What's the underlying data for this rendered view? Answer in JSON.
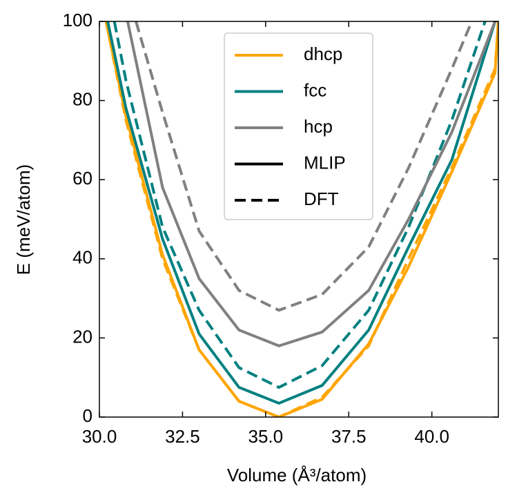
{
  "chart_data": {
    "type": "line",
    "xlabel": "Volume (Å³/atom)",
    "ylabel": "E (meV/atom)",
    "xlim": [
      30,
      42
    ],
    "ylim": [
      0,
      100
    ],
    "xticks": [
      {
        "value": 30,
        "label": "30.0"
      },
      {
        "value": 32.5,
        "label": "32.5"
      },
      {
        "value": 35,
        "label": "35.0"
      },
      {
        "value": 37.5,
        "label": "37.5"
      },
      {
        "value": 40,
        "label": "40.0"
      }
    ],
    "yticks": [
      0,
      20,
      40,
      60,
      80,
      100
    ],
    "legend_position": "upper center",
    "legend": [
      {
        "label": "dhcp",
        "color": "#ffa500",
        "dash": "solid"
      },
      {
        "label": "fcc",
        "color": "#008080",
        "dash": "solid"
      },
      {
        "label": "hcp",
        "color": "#808080",
        "dash": "solid"
      },
      {
        "label": "MLIP",
        "color": "#000000",
        "dash": "solid"
      },
      {
        "label": "DFT",
        "color": "#000000",
        "dash": "dashed"
      }
    ],
    "series": [
      {
        "name": "dhcp",
        "method": "MLIP",
        "color": "#ffa500",
        "dash": "solid",
        "x": [
          30.2,
          30.8,
          31.9,
          33.0,
          34.2,
          35.4,
          36.7,
          38.1,
          39.3,
          40.6,
          41.9,
          42.0
        ],
        "values": [
          100,
          76,
          41,
          17,
          4,
          0,
          4.5,
          18.5,
          38,
          62,
          87,
          100
        ]
      },
      {
        "name": "dhcp",
        "method": "DFT",
        "color": "#ffa500",
        "dash": "dashed",
        "x": [
          30.2,
          30.8,
          31.9,
          33.0,
          34.2,
          35.4,
          36.7,
          38.1,
          39.3,
          40.6,
          41.9,
          42.0
        ],
        "values": [
          100,
          75,
          40,
          17,
          4,
          0,
          5,
          18,
          40,
          63,
          88,
          100
        ]
      },
      {
        "name": "fcc",
        "method": "MLIP",
        "color": "#008080",
        "dash": "solid",
        "x": [
          30.25,
          30.8,
          31.9,
          33.0,
          34.2,
          35.4,
          36.7,
          38.1,
          39.3,
          40.6,
          41.9
        ],
        "values": [
          100,
          78,
          45,
          21,
          7.5,
          3.5,
          8,
          22,
          43,
          65,
          100
        ]
      },
      {
        "name": "fcc",
        "method": "DFT",
        "color": "#008080",
        "dash": "dashed",
        "x": [
          30.45,
          30.8,
          31.9,
          33.0,
          34.2,
          35.4,
          36.7,
          38.1,
          39.3,
          40.6,
          41.6
        ],
        "values": [
          100,
          85,
          48,
          27,
          12.5,
          7.5,
          13,
          27,
          48,
          75,
          100
        ]
      },
      {
        "name": "hcp",
        "method": "MLIP",
        "color": "#808080",
        "dash": "solid",
        "x": [
          30.85,
          31.9,
          33.0,
          34.2,
          35.4,
          36.7,
          38.1,
          39.3,
          40.6,
          41.9
        ],
        "values": [
          100,
          58,
          35,
          22,
          18,
          21.5,
          32,
          50,
          72,
          100
        ]
      },
      {
        "name": "hcp",
        "method": "DFT",
        "color": "#808080",
        "dash": "dashed",
        "x": [
          31.1,
          31.9,
          33.0,
          34.2,
          35.4,
          36.7,
          38.1,
          39.3,
          40.6,
          41.2
        ],
        "values": [
          100,
          77,
          47,
          32,
          27,
          31,
          43,
          63,
          88,
          100
        ]
      }
    ]
  }
}
